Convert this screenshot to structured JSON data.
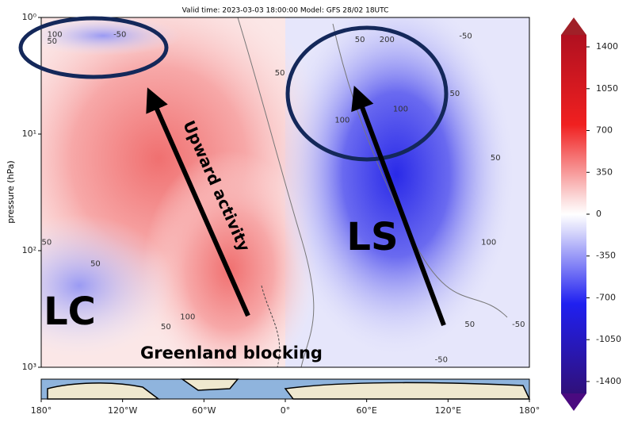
{
  "chart_data": {
    "type": "contour",
    "title": "Valid time: 2023-03-03 18:00:00 Model: GFS 28/02 18UTC",
    "ylabel": "pressure (hPa)",
    "yscale": "log",
    "y_inverted": true,
    "ylim": [
      1000,
      1
    ],
    "yticks": [
      {
        "value": 1,
        "label": "10⁰"
      },
      {
        "value": 10,
        "label": "10¹"
      },
      {
        "value": 100,
        "label": "10²"
      },
      {
        "value": 1000,
        "label": "10³"
      }
    ],
    "xlim": [
      -180,
      180
    ],
    "xticks": [
      {
        "value": -180,
        "label": "180°"
      },
      {
        "value": -120,
        "label": "120°W"
      },
      {
        "value": -60,
        "label": "60°W"
      },
      {
        "value": 0,
        "label": "0°"
      },
      {
        "value": 60,
        "label": "60°E"
      },
      {
        "value": 120,
        "label": "120°E"
      },
      {
        "value": 180,
        "label": "180°"
      }
    ],
    "colorbar": {
      "lim": [
        -1500,
        1500
      ],
      "extend": "both",
      "ticks": [
        1400,
        1050,
        700,
        350,
        0,
        -350,
        -700,
        -1050,
        -1400
      ]
    },
    "contour_labels": [
      {
        "value": 100,
        "x": -170,
        "y": 1.4
      },
      {
        "value": 50,
        "x": -172,
        "y": 1.6
      },
      {
        "value": -50,
        "x": -122,
        "y": 1.4
      },
      {
        "value": 50,
        "x": -4,
        "y": 3.0
      },
      {
        "value": 50,
        "x": 55,
        "y": 1.55
      },
      {
        "value": 200,
        "x": 75,
        "y": 1.55
      },
      {
        "value": -50,
        "x": 133,
        "y": 1.45
      },
      {
        "value": 50,
        "x": 125,
        "y": 4.5
      },
      {
        "value": 100,
        "x": 42,
        "y": 7.6
      },
      {
        "value": 100,
        "x": 85,
        "y": 6.1
      },
      {
        "value": 50,
        "x": 155,
        "y": 16
      },
      {
        "value": 50,
        "x": -176,
        "y": 85
      },
      {
        "value": 50,
        "x": -140,
        "y": 130
      },
      {
        "value": 100,
        "x": 150,
        "y": 85
      },
      {
        "value": 50,
        "x": -88,
        "y": 450
      },
      {
        "value": 100,
        "x": -72,
        "y": 370
      },
      {
        "value": -50,
        "x": 172,
        "y": 430
      },
      {
        "value": -50,
        "x": 115,
        "y": 860
      },
      {
        "value": 50,
        "x": 136,
        "y": 430
      }
    ],
    "annotations": [
      "Upward activity",
      "LS",
      "LC",
      "Greenland blocking"
    ]
  }
}
